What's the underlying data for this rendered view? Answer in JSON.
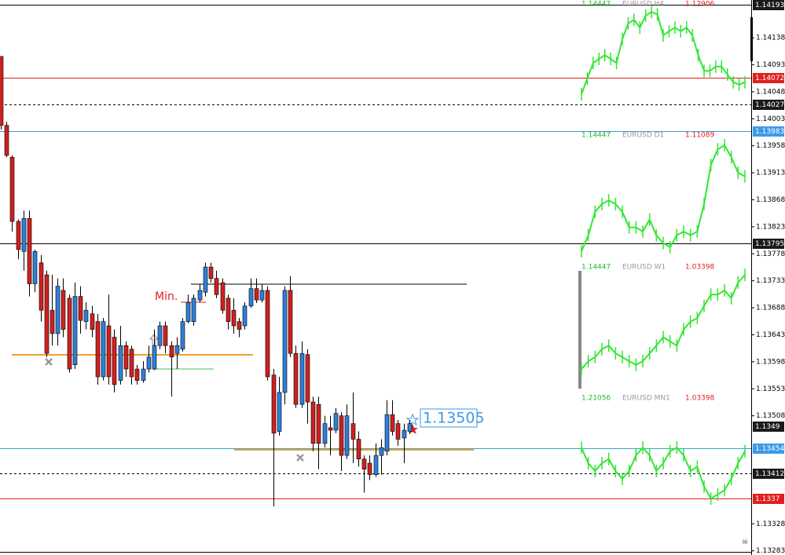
{
  "chart_data": {
    "type": "candlestick",
    "up_color": "#2f7fd9",
    "down_color": "#d02020",
    "ylim": [
      1.13276,
      1.14201
    ],
    "yticks": [
      1.14138,
      1.14093,
      1.14048,
      1.14003,
      1.13958,
      1.13913,
      1.13868,
      1.13823,
      1.13778,
      1.13733,
      1.13688,
      1.13643,
      1.13598,
      1.13553,
      1.13508,
      1.13328,
      1.13283
    ],
    "open": [
      1.14107,
      1.13992,
      1.13939,
      1.13832,
      1.13782,
      1.13837,
      1.13728,
      1.13763,
      1.13743,
      1.13684,
      1.13645,
      1.13717,
      1.13704,
      1.13593,
      1.13707,
      1.13665,
      1.13678,
      1.13665,
      1.13573,
      1.13658,
      1.13639,
      1.13567,
      1.13625,
      1.13619,
      1.13586,
      1.13567,
      1.13586,
      1.13586,
      1.13625,
      1.13658,
      1.13625,
      1.13612,
      1.13619,
      1.13665,
      1.13665,
      1.13701,
      1.13714,
      1.13756,
      1.13737,
      1.1373,
      1.13704,
      1.13684,
      1.13665,
      1.13658,
      1.13691,
      1.1372,
      1.13701,
      1.13717,
      1.13576,
      1.13482,
      1.13547,
      1.13717,
      1.13612,
      1.13527,
      1.1361,
      1.13531,
      1.13527,
      1.13462,
      1.13488,
      1.13484,
      1.13508,
      1.13442,
      1.13495,
      1.13469,
      1.13436,
      1.13429,
      1.1341,
      1.13442,
      1.13449,
      1.1351,
      1.13495,
      1.13471,
      1.13482
    ],
    "high": [
      1.14107,
      1.13998,
      1.13942,
      1.13835,
      1.1385,
      1.1385,
      1.13785,
      1.13776,
      1.1375,
      1.13743,
      1.13737,
      1.13737,
      1.1371,
      1.1373,
      1.13724,
      1.13697,
      1.13691,
      1.13678,
      1.13671,
      1.1371,
      1.13652,
      1.13658,
      1.13632,
      1.13625,
      1.13593,
      1.13599,
      1.13625,
      1.13652,
      1.13665,
      1.13665,
      1.13632,
      1.13639,
      1.13671,
      1.1371,
      1.1371,
      1.13728,
      1.13763,
      1.13763,
      1.1375,
      1.13737,
      1.1371,
      1.13704,
      1.13671,
      1.13697,
      1.13737,
      1.13737,
      1.13728,
      1.13724,
      1.13586,
      1.13573,
      1.13724,
      1.13741,
      1.13625,
      1.13632,
      1.13619,
      1.1354,
      1.1354,
      1.13508,
      1.13508,
      1.13521,
      1.13514,
      1.13527,
      1.13547,
      1.13482,
      1.13442,
      1.13442,
      1.13462,
      1.13469,
      1.13534,
      1.13534,
      1.13501,
      1.13495,
      1.13501
    ],
    "low": [
      1.13985,
      1.13939,
      1.13815,
      1.13769,
      1.1375,
      1.13707,
      1.13714,
      1.13665,
      1.13606,
      1.13625,
      1.13625,
      1.13639,
      1.1358,
      1.13586,
      1.13645,
      1.13652,
      1.13639,
      1.1356,
      1.13567,
      1.1356,
      1.13547,
      1.1356,
      1.13573,
      1.1356,
      1.1356,
      1.13563,
      1.1358,
      1.13584,
      1.13619,
      1.13612,
      1.1354,
      1.13586,
      1.13615,
      1.13662,
      1.13658,
      1.13697,
      1.13707,
      1.1373,
      1.13704,
      1.13678,
      1.13652,
      1.13645,
      1.13639,
      1.13652,
      1.13688,
      1.13696,
      1.13697,
      1.13567,
      1.13357,
      1.13475,
      1.13527,
      1.13606,
      1.13521,
      1.13521,
      1.13495,
      1.13449,
      1.13419,
      1.13455,
      1.13442,
      1.13479,
      1.13416,
      1.13436,
      1.13429,
      1.13423,
      1.1338,
      1.13401,
      1.13406,
      1.1341,
      1.13442,
      1.13475,
      1.13458,
      1.13429,
      1.13478
    ],
    "close": [
      1.13992,
      1.13942,
      1.13832,
      1.13785,
      1.13837,
      1.13728,
      1.13782,
      1.13684,
      1.13612,
      1.13645,
      1.13724,
      1.13652,
      1.13586,
      1.13707,
      1.13667,
      1.13684,
      1.13652,
      1.13573,
      1.13665,
      1.13573,
      1.1356,
      1.13625,
      1.13586,
      1.13573,
      1.13567,
      1.13586,
      1.13606,
      1.13625,
      1.13658,
      1.13625,
      1.13606,
      1.13625,
      1.13665,
      1.13697,
      1.13704,
      1.13717,
      1.13756,
      1.13737,
      1.1371,
      1.13684,
      1.13665,
      1.13658,
      1.13652,
      1.13691,
      1.1372,
      1.13701,
      1.13717,
      1.13573,
      1.13479,
      1.13547,
      1.13717,
      1.13612,
      1.13527,
      1.13612,
      1.13531,
      1.13462,
      1.13462,
      1.13495,
      1.13484,
      1.13512,
      1.13442,
      1.13508,
      1.13469,
      1.13436,
      1.13419,
      1.1341,
      1.13442,
      1.13455,
      1.1351,
      1.13482,
      1.13469,
      1.13484,
      1.13495
    ],
    "levels": [
      {
        "value": 1.14193,
        "color": "#000000",
        "box": "#1a1a1a",
        "dashed": false
      },
      {
        "value": 1.14072,
        "color": "#e02020",
        "box": "#e02020",
        "dashed": false
      },
      {
        "value": 1.14027,
        "color": "#000000",
        "box": "#1a1a1a",
        "dashed": true
      },
      {
        "value": 1.13983,
        "color": "#3c9ae8",
        "box": "#3c9ae8",
        "dashed": false
      },
      {
        "value": 1.13795,
        "color": "#000000",
        "box": "#1a1a1a",
        "dashed": false
      },
      {
        "value": 1.1349,
        "color": "none",
        "box": "#1a1a1a",
        "dashed": false
      },
      {
        "value": 1.13454,
        "color": "#30a8c8",
        "box": "#3c9ae8",
        "dashed": false
      },
      {
        "value": 1.13412,
        "color": "#000000",
        "box": "#1a1a1a",
        "dashed": true
      },
      {
        "value": 1.1337,
        "color": "#e02020",
        "box": "#e02020",
        "dashed": false
      }
    ],
    "annotations": [
      "Min.",
      "1.13505"
    ],
    "panel_color": "#33e633",
    "panels": [
      {
        "left": "1.14447",
        "title": "EURUSD H4",
        "right": "1.12906",
        "values": [
          1.14044,
          1.1407,
          1.14096,
          1.14103,
          1.14109,
          1.14103,
          1.14096,
          1.14136,
          1.14162,
          1.14168,
          1.14155,
          1.14175,
          1.14181,
          1.14177,
          1.14142,
          1.14149,
          1.14155,
          1.14149,
          1.14155,
          1.14142,
          1.14109,
          1.14083,
          1.14083,
          1.1409,
          1.1409,
          1.14077,
          1.14064,
          1.1406,
          1.14064
        ]
      },
      {
        "left": "1.14447",
        "title": "EURUSD D1",
        "right": "1.11089",
        "values": [
          1.13782,
          1.13809,
          1.13848,
          1.13861,
          1.13867,
          1.13861,
          1.13848,
          1.13822,
          1.13822,
          1.13815,
          1.13835,
          1.13809,
          1.13796,
          1.13789,
          1.13809,
          1.13815,
          1.13809,
          1.13815,
          1.13861,
          1.13926,
          1.13952,
          1.13959,
          1.13939,
          1.13913,
          1.13907
        ]
      },
      {
        "left": "1.14447",
        "title": "EURUSD W1",
        "right": "1.03398",
        "values": [
          1.13586,
          1.13599,
          1.13606,
          1.13619,
          1.13625,
          1.13612,
          1.13606,
          1.13599,
          1.13593,
          1.13599,
          1.13612,
          1.13625,
          1.13639,
          1.13632,
          1.13625,
          1.13652,
          1.13665,
          1.13671,
          1.13691,
          1.1371,
          1.1371,
          1.13717,
          1.13704,
          1.1373,
          1.13743
        ]
      },
      {
        "left": "1.21056",
        "title": "EURUSD MN1",
        "right": "1.03398",
        "values": [
          1.13455,
          1.13429,
          1.13416,
          1.13429,
          1.13436,
          1.13416,
          1.13403,
          1.13416,
          1.13442,
          1.13455,
          1.13442,
          1.13416,
          1.13429,
          1.13449,
          1.13455,
          1.13442,
          1.13416,
          1.13423,
          1.1339,
          1.1337,
          1.13377,
          1.13384,
          1.13403,
          1.13429,
          1.13449
        ]
      }
    ]
  }
}
